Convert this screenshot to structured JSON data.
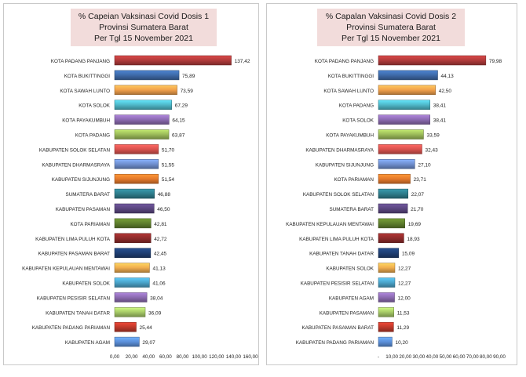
{
  "chart_data": [
    {
      "type": "bar",
      "orientation": "horizontal",
      "title_lines": [
        "% Capeian Vaksinasi Covid Dosis 1",
        "Provinsi Sumatera Barat",
        "Per Tgl 15 November  2021"
      ],
      "categories": [
        "KOTA PADANG PANJANG",
        "KOTA BUKITTINGGI",
        "KOTA SAWAH LUNTO",
        "KOTA SOLOK",
        "KOTA PAYAKUMBUH",
        "KOTA PADANG",
        "KABUPATEN SOLOK SELATAN",
        "KABUPATEN DHARMASRAYA",
        "KABUPATEN SIJUNJUNG",
        "SUMATERA BARAT",
        "KABUPATEN PASAMAN",
        "KOTA PARIAMAN",
        "KABUPATEN LIMA PULUH KOTA",
        "KABUPATEN PASAMAN BARAT",
        "KABUPATEN KEPULAUAN MENTAWAI",
        "KABUPATEN SOLOK",
        "KABUPATEN PESISIR SELATAN",
        "KABUPATEN TANAH DATAR",
        "KABUPATEN PADANG PARIAMAN",
        "KABUPATEN AGAM"
      ],
      "values": [
        137.42,
        75.89,
        73.59,
        67.29,
        64.15,
        63.87,
        51.7,
        51.55,
        51.54,
        46.88,
        46.5,
        42.81,
        42.72,
        42.45,
        41.13,
        41.06,
        38.04,
        36.09,
        25.44,
        29.07
      ],
      "labels": [
        "137,42",
        "75,89",
        "73,59",
        "67,29",
        "64,15",
        "63,87",
        "51,70",
        "51,55",
        "51,54",
        "46,88",
        "46,50",
        "42,81",
        "42,72",
        "42,45",
        "41,13",
        "41,06",
        "38,04",
        "36,09",
        "25,44",
        "29,07"
      ],
      "colors": [
        "#b03a3a",
        "#3e6aa8",
        "#f0a04b",
        "#4fb8c9",
        "#8c6bb1",
        "#9bbb59",
        "#d9534f",
        "#6f8fcf",
        "#e57a2c",
        "#2e7d8c",
        "#5b4680",
        "#5f7f2d",
        "#8e2b2b",
        "#1f3f74",
        "#f0ad4e",
        "#4aa3c9",
        "#8c6bb1",
        "#a6c967",
        "#c0392b",
        "#5b8fd9"
      ],
      "xlim": [
        0,
        160
      ],
      "xticks": [
        "0,00",
        "20,00",
        "40,00",
        "60,00",
        "80,00",
        "100,00",
        "120,00",
        "140,00",
        "160,00"
      ]
    },
    {
      "type": "bar",
      "orientation": "horizontal",
      "title_lines": [
        "% Capalan Vaksinasi Covid Dosis 2",
        "Provinsi Sumatera Barat",
        "Per Tgl 15 November  2021"
      ],
      "categories": [
        "KOTA PADANG PANJANG",
        "KOTA BUKITTINGGI",
        "KOTA SAWAH LUNTO",
        "KOTA PADANG",
        "KOTA SOLOK",
        "KOTA PAYAKUMBUH",
        "KABUPATEN DHARMASRAYA",
        "KABUPATEN SIJUNJUNG",
        "KOTA PARIAMAN",
        "KABUPATEN SOLOK SELATAN",
        "SUMATERA BARAT",
        "KABUPATEN KEPULAUAN MENTAWAI",
        "KABUPATEN LIMA PULUH KOTA",
        "KABUPATEN TANAH DATAR",
        "KABUPATEN SOLOK",
        "KABUPATEN PESISIR SELATAN",
        "KABUPATEN AGAM",
        "KABUPATEN PASAMAN",
        "KABUPATEN PASAMAN BARAT",
        "KABUPATEN PADANG PARIAMAN"
      ],
      "values": [
        79.98,
        44.13,
        42.5,
        38.41,
        38.41,
        33.59,
        32.43,
        27.1,
        23.71,
        22.07,
        21.7,
        19.69,
        18.93,
        15.09,
        12.27,
        12.27,
        12.0,
        11.53,
        11.29,
        10.2
      ],
      "labels": [
        "79,98",
        "44,13",
        "42,50",
        "38,41",
        "38,41",
        "33,59",
        "32,43",
        "27,10",
        "23,71",
        "22,07",
        "21,70",
        "19,69",
        "18,93",
        "15,09",
        "12,27",
        "12,27",
        "12,00",
        "11,53",
        "11,29",
        "10,20"
      ],
      "colors": [
        "#b03a3a",
        "#3e6aa8",
        "#f0a04b",
        "#4fb8c9",
        "#8c6bb1",
        "#9bbb59",
        "#d9534f",
        "#6f8fcf",
        "#e57a2c",
        "#2e7d8c",
        "#5b4680",
        "#5f7f2d",
        "#8e2b2b",
        "#1f3f74",
        "#f0ad4e",
        "#4aa3c9",
        "#8c6bb1",
        "#a6c967",
        "#c0392b",
        "#5b8fd9"
      ],
      "xlim": [
        0,
        90
      ],
      "xticks": [
        "-",
        "10,00",
        "20,00",
        "30,00",
        "40,00",
        "50,00",
        "60,00",
        "70,00",
        "80,00",
        "90,00"
      ]
    }
  ]
}
